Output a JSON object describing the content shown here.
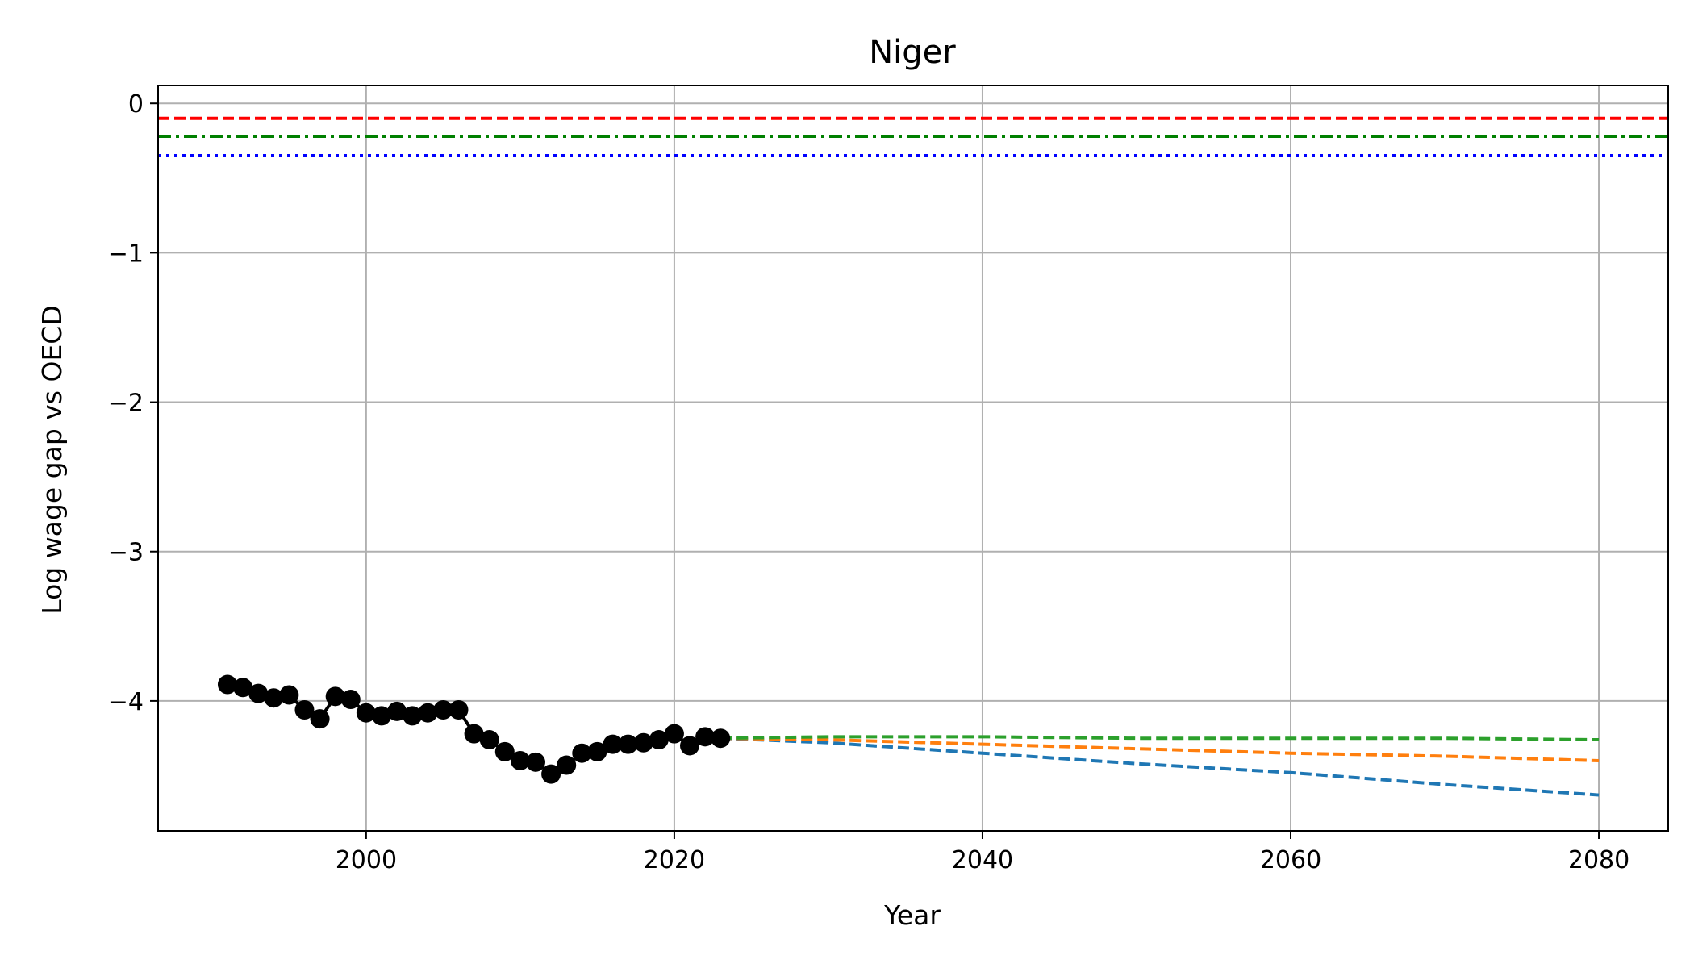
{
  "chart_data": {
    "type": "line",
    "title": "Niger",
    "xlabel": "Year",
    "ylabel": "Log wage gap vs OECD",
    "xlim": [
      1986.5,
      2084.5
    ],
    "ylim": [
      -4.87,
      0.12
    ],
    "xticks": [
      2000,
      2020,
      2040,
      2060,
      2080
    ],
    "yticks": [
      0,
      -1,
      -2,
      -3,
      -4
    ],
    "ytick_labels": [
      "0",
      "−1",
      "−2",
      "−3",
      "−4"
    ],
    "grid": true,
    "reference_lines": [
      {
        "y": -0.1,
        "color": "#ff0000",
        "style": "dashed"
      },
      {
        "y": -0.22,
        "color": "#008000",
        "style": "dashdot"
      },
      {
        "y": -0.35,
        "color": "#0000ff",
        "style": "dotted"
      }
    ],
    "historical": {
      "color": "#000000",
      "marker": "circle",
      "x": [
        1991,
        1992,
        1993,
        1994,
        1995,
        1996,
        1997,
        1998,
        1999,
        2000,
        2001,
        2002,
        2003,
        2004,
        2005,
        2006,
        2007,
        2008,
        2009,
        2010,
        2011,
        2012,
        2013,
        2014,
        2015,
        2016,
        2017,
        2018,
        2019,
        2020,
        2021,
        2022,
        2023
      ],
      "y": [
        -3.89,
        -3.91,
        -3.95,
        -3.98,
        -3.96,
        -4.06,
        -4.12,
        -3.97,
        -3.99,
        -4.08,
        -4.1,
        -4.07,
        -4.1,
        -4.08,
        -4.06,
        -4.06,
        -4.22,
        -4.26,
        -4.34,
        -4.4,
        -4.41,
        -4.49,
        -4.43,
        -4.35,
        -4.34,
        -4.29,
        -4.29,
        -4.28,
        -4.26,
        -4.22,
        -4.3,
        -4.24,
        -4.25
      ]
    },
    "projections": [
      {
        "color": "#1f77b4",
        "style": "dashed",
        "x": [
          2023,
          2030,
          2040,
          2050,
          2060,
          2070,
          2080
        ],
        "y": [
          -4.25,
          -4.28,
          -4.35,
          -4.42,
          -4.48,
          -4.56,
          -4.63
        ]
      },
      {
        "color": "#ff7f0e",
        "style": "dashed",
        "x": [
          2023,
          2030,
          2040,
          2050,
          2060,
          2070,
          2080
        ],
        "y": [
          -4.25,
          -4.26,
          -4.29,
          -4.32,
          -4.35,
          -4.37,
          -4.4
        ]
      },
      {
        "color": "#2ca02c",
        "style": "dashed",
        "x": [
          2023,
          2030,
          2040,
          2050,
          2060,
          2070,
          2080
        ],
        "y": [
          -4.25,
          -4.24,
          -4.24,
          -4.25,
          -4.25,
          -4.25,
          -4.26
        ]
      }
    ]
  }
}
